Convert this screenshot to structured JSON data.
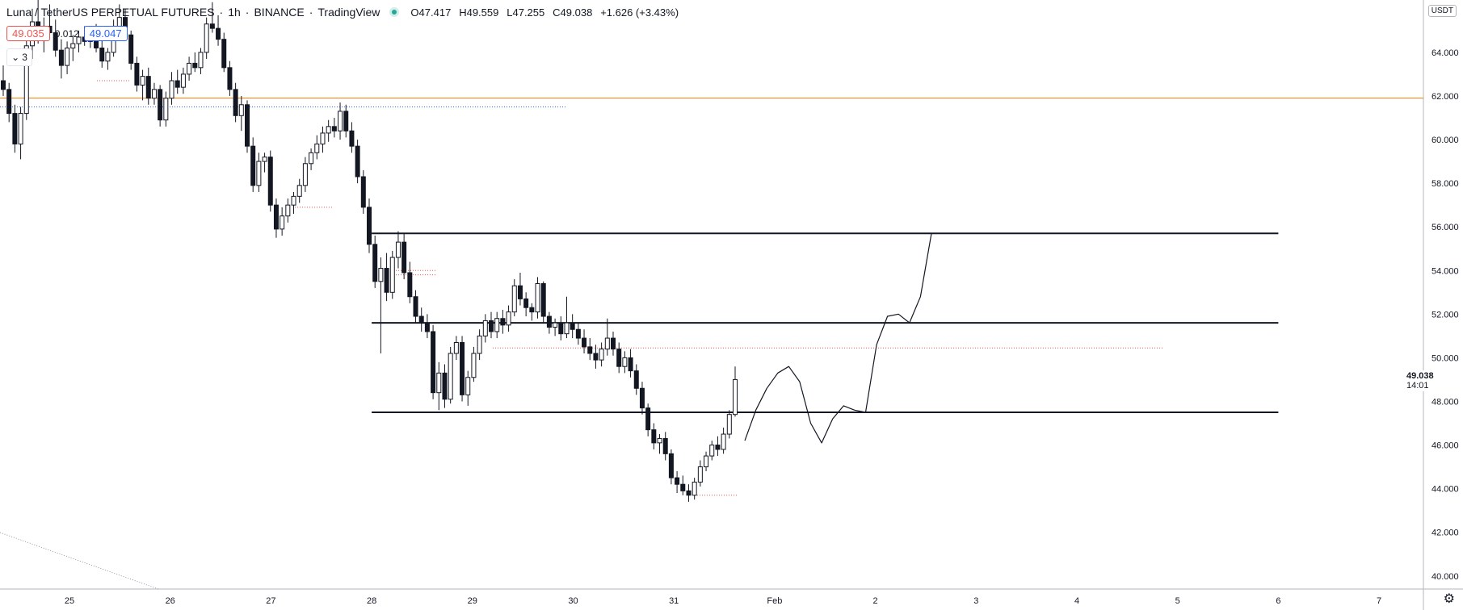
{
  "header": {
    "symbol": "Luna / TetherUS PERPETUAL FUTURES",
    "interval": "1h",
    "exchange": "BINANCE",
    "brand": "TradingView",
    "status_dot_color": "#26a69a",
    "ohlc": {
      "o_label": "O",
      "o": "47.417",
      "h_label": "H",
      "h": "49.559",
      "l_label": "L",
      "l": "47.255",
      "c_label": "C",
      "c": "49.038",
      "change": "+1.626 (+3.43%)"
    }
  },
  "trade": {
    "sell": "49.035",
    "spread": "0.012",
    "buy": "49.047"
  },
  "indicators_toggle": {
    "icon": "chevron-down-icon",
    "count": "3"
  },
  "currency": "USDT",
  "last_price": {
    "value": "49.038",
    "countdown": "14:01"
  },
  "settings_icon": "gear-icon",
  "chart_data": {
    "type": "candlestick",
    "x_tick_labels": [
      "25",
      "26",
      "27",
      "28",
      "29",
      "30",
      "31",
      "Feb",
      "2",
      "3",
      "4",
      "5",
      "6",
      "7"
    ],
    "y_ticks": [
      "40.000",
      "42.000",
      "44.000",
      "46.000",
      "48.000",
      "50.000",
      "52.000",
      "54.000",
      "56.000",
      "58.000",
      "60.000",
      "62.000",
      "64.000"
    ],
    "ylim": [
      39.4,
      66.4
    ],
    "colors": {
      "candle": "#131722",
      "orange_line": "#f57c00",
      "blue_dotted": "#2962ff",
      "red_dotted": "#ef5350"
    },
    "horizontal_lines": [
      {
        "price": 55.7,
        "from_day": 28.0,
        "to_day": 6.0,
        "style": "solid-black"
      },
      {
        "price": 51.6,
        "from_day": 28.0,
        "to_day": 6.0,
        "style": "solid-black"
      },
      {
        "price": 47.5,
        "from_day": 28.0,
        "to_day": 6.0,
        "style": "solid-black"
      },
      {
        "price": 61.9,
        "style": "orange-full"
      }
    ],
    "forecast_path_prices": [
      46.2,
      47.6,
      48.6,
      49.3,
      49.6,
      48.9,
      47.0,
      46.1,
      47.2,
      47.8,
      47.6,
      47.5,
      50.6,
      51.9,
      52.0,
      51.6,
      52.8,
      55.7
    ],
    "candles_ohlc": [
      [
        62.7,
        63.4,
        62.0,
        62.3
      ],
      [
        62.3,
        62.6,
        60.8,
        61.2
      ],
      [
        61.2,
        61.6,
        59.4,
        59.8
      ],
      [
        59.8,
        61.5,
        59.1,
        61.2
      ],
      [
        61.2,
        64.8,
        60.9,
        64.3
      ],
      [
        64.3,
        66.0,
        63.7,
        65.4
      ],
      [
        65.4,
        66.4,
        64.4,
        64.8
      ],
      [
        64.8,
        65.6,
        64.0,
        65.2
      ],
      [
        65.2,
        66.2,
        64.6,
        64.9
      ],
      [
        64.9,
        65.5,
        63.8,
        64.1
      ],
      [
        64.1,
        64.6,
        62.8,
        63.4
      ],
      [
        63.4,
        64.5,
        63.0,
        64.2
      ],
      [
        64.2,
        64.8,
        63.6,
        64.4
      ],
      [
        64.4,
        65.0,
        64.0,
        64.7
      ],
      [
        64.7,
        65.2,
        64.3,
        64.5
      ],
      [
        64.5,
        65.1,
        64.2,
        64.9
      ],
      [
        64.9,
        65.3,
        64.0,
        64.2
      ],
      [
        64.2,
        64.6,
        63.3,
        63.6
      ],
      [
        63.6,
        64.2,
        63.2,
        64.0
      ],
      [
        64.0,
        65.5,
        63.8,
        65.2
      ],
      [
        65.2,
        66.2,
        64.8,
        65.6
      ],
      [
        65.6,
        66.0,
        64.6,
        64.8
      ],
      [
        64.8,
        65.0,
        63.2,
        63.5
      ],
      [
        63.5,
        63.8,
        62.2,
        62.5
      ],
      [
        62.5,
        63.2,
        61.8,
        62.9
      ],
      [
        62.9,
        63.3,
        61.6,
        61.9
      ],
      [
        61.9,
        62.6,
        61.6,
        62.3
      ],
      [
        62.3,
        62.5,
        60.6,
        60.9
      ],
      [
        60.9,
        62.2,
        60.6,
        61.9
      ],
      [
        61.9,
        63.1,
        61.6,
        62.7
      ],
      [
        62.7,
        63.2,
        62.1,
        62.4
      ],
      [
        62.4,
        63.3,
        62.1,
        63.0
      ],
      [
        63.0,
        63.8,
        62.7,
        63.5
      ],
      [
        63.5,
        64.0,
        63.1,
        63.3
      ],
      [
        63.3,
        64.2,
        63.0,
        64.0
      ],
      [
        64.0,
        65.6,
        63.7,
        65.3
      ],
      [
        65.3,
        66.3,
        64.9,
        65.1
      ],
      [
        65.1,
        65.7,
        64.3,
        64.6
      ],
      [
        64.6,
        64.9,
        63.1,
        63.3
      ],
      [
        63.3,
        63.6,
        62.0,
        62.3
      ],
      [
        62.3,
        62.6,
        60.8,
        61.1
      ],
      [
        61.1,
        62.0,
        60.4,
        61.6
      ],
      [
        61.6,
        61.8,
        59.4,
        59.7
      ],
      [
        59.7,
        60.1,
        57.6,
        57.9
      ],
      [
        57.9,
        59.4,
        57.6,
        59.0
      ],
      [
        59.0,
        59.4,
        58.5,
        59.2
      ],
      [
        59.2,
        59.5,
        56.7,
        57.0
      ],
      [
        57.0,
        57.3,
        55.5,
        55.9
      ],
      [
        55.9,
        56.9,
        55.6,
        56.5
      ],
      [
        56.5,
        57.3,
        56.2,
        57.0
      ],
      [
        57.0,
        57.6,
        56.6,
        57.4
      ],
      [
        57.4,
        58.2,
        57.1,
        57.9
      ],
      [
        57.9,
        59.2,
        57.6,
        58.9
      ],
      [
        58.9,
        59.6,
        58.6,
        59.4
      ],
      [
        59.4,
        60.2,
        59.1,
        59.8
      ],
      [
        59.8,
        60.6,
        59.4,
        60.3
      ],
      [
        60.3,
        60.9,
        59.9,
        60.6
      ],
      [
        60.6,
        61.0,
        60.1,
        60.4
      ],
      [
        60.4,
        61.7,
        60.0,
        61.3
      ],
      [
        61.3,
        61.6,
        60.1,
        60.4
      ],
      [
        60.4,
        60.8,
        59.4,
        59.7
      ],
      [
        59.7,
        60.0,
        58.0,
        58.3
      ],
      [
        58.3,
        58.6,
        56.6,
        56.9
      ],
      [
        56.9,
        57.3,
        54.8,
        55.2
      ],
      [
        55.2,
        55.6,
        53.2,
        53.5
      ],
      [
        53.5,
        54.6,
        50.2,
        54.1
      ],
      [
        54.1,
        54.8,
        52.6,
        53.0
      ],
      [
        53.0,
        54.9,
        52.7,
        54.6
      ],
      [
        54.6,
        55.8,
        54.1,
        55.3
      ],
      [
        55.3,
        55.7,
        53.6,
        53.9
      ],
      [
        53.9,
        54.4,
        52.5,
        52.8
      ],
      [
        52.8,
        53.1,
        51.6,
        51.9
      ],
      [
        51.9,
        52.3,
        51.2,
        51.6
      ],
      [
        51.6,
        52.0,
        50.9,
        51.2
      ],
      [
        51.2,
        51.5,
        48.1,
        48.4
      ],
      [
        48.4,
        49.8,
        47.6,
        49.3
      ],
      [
        49.3,
        49.7,
        47.7,
        48.1
      ],
      [
        48.1,
        50.5,
        47.9,
        50.2
      ],
      [
        50.2,
        51.0,
        49.9,
        50.7
      ],
      [
        50.7,
        51.0,
        48.0,
        48.3
      ],
      [
        48.3,
        49.4,
        47.8,
        49.1
      ],
      [
        49.1,
        50.5,
        48.9,
        50.2
      ],
      [
        50.2,
        51.3,
        49.9,
        51.0
      ],
      [
        51.0,
        52.0,
        50.7,
        51.7
      ],
      [
        51.7,
        52.1,
        50.9,
        51.2
      ],
      [
        51.2,
        52.1,
        50.9,
        51.8
      ],
      [
        51.8,
        52.2,
        51.1,
        51.5
      ],
      [
        51.5,
        52.4,
        51.2,
        52.1
      ],
      [
        52.1,
        53.6,
        51.9,
        53.3
      ],
      [
        53.3,
        53.9,
        52.4,
        52.7
      ],
      [
        52.7,
        53.0,
        51.9,
        52.3
      ],
      [
        52.3,
        52.5,
        51.7,
        52.1
      ],
      [
        52.1,
        53.7,
        51.8,
        53.4
      ],
      [
        53.4,
        53.5,
        51.6,
        51.9
      ],
      [
        51.9,
        52.1,
        51.1,
        51.4
      ],
      [
        51.4,
        51.8,
        51.0,
        51.6
      ],
      [
        51.6,
        51.9,
        50.8,
        51.1
      ],
      [
        51.1,
        52.8,
        50.9,
        51.6
      ],
      [
        51.6,
        52.0,
        50.9,
        51.3
      ],
      [
        51.3,
        51.6,
        50.6,
        50.9
      ],
      [
        50.9,
        51.3,
        50.2,
        50.5
      ],
      [
        50.5,
        50.9,
        49.9,
        50.2
      ],
      [
        50.2,
        50.6,
        49.5,
        49.9
      ],
      [
        49.9,
        50.7,
        49.6,
        50.4
      ],
      [
        50.4,
        51.8,
        50.1,
        50.9
      ],
      [
        50.9,
        51.2,
        50.1,
        50.4
      ],
      [
        50.4,
        50.7,
        49.3,
        49.6
      ],
      [
        49.6,
        50.3,
        49.3,
        50.0
      ],
      [
        50.0,
        50.4,
        49.1,
        49.4
      ],
      [
        49.4,
        49.7,
        48.3,
        48.6
      ],
      [
        48.6,
        48.9,
        47.4,
        47.7
      ],
      [
        47.7,
        47.9,
        46.4,
        46.7
      ],
      [
        46.7,
        47.0,
        45.8,
        46.1
      ],
      [
        46.1,
        46.5,
        45.6,
        46.3
      ],
      [
        46.3,
        46.6,
        45.3,
        45.6
      ],
      [
        45.6,
        45.8,
        44.2,
        44.5
      ],
      [
        44.5,
        44.8,
        43.8,
        44.2
      ],
      [
        44.2,
        44.6,
        43.7,
        43.9
      ],
      [
        43.9,
        44.2,
        43.4,
        43.7
      ],
      [
        43.7,
        44.5,
        43.5,
        44.3
      ],
      [
        44.3,
        45.3,
        44.1,
        45.0
      ],
      [
        45.0,
        45.7,
        44.8,
        45.5
      ],
      [
        45.5,
        46.2,
        45.3,
        46.0
      ],
      [
        46.0,
        46.4,
        45.5,
        45.8
      ],
      [
        45.8,
        46.8,
        45.6,
        46.5
      ],
      [
        46.5,
        47.6,
        46.3,
        47.4
      ],
      [
        47.4,
        49.6,
        47.3,
        49.0
      ]
    ]
  }
}
